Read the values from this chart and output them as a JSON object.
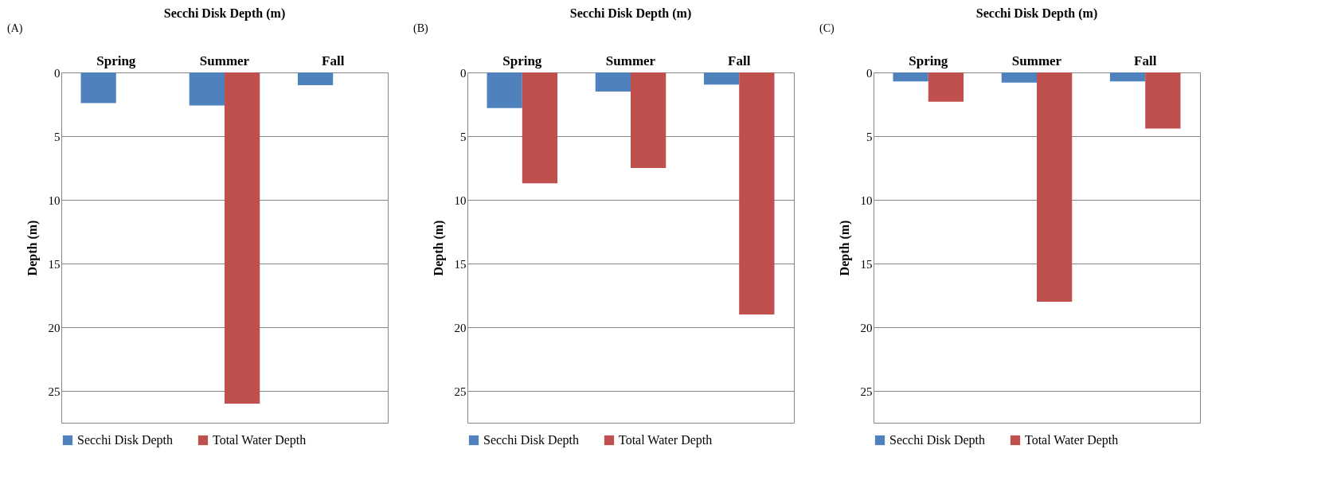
{
  "chart_data": [
    {
      "type": "bar",
      "title": "Secchi Disk Depth (m)",
      "ylabel": "Depth (m)",
      "annotations": [
        "(A)"
      ],
      "categories": [
        "Spring",
        "Summer",
        "Fall"
      ],
      "series": [
        {
          "name": "Secchi Disk Depth",
          "color": "#4f81bd",
          "values": [
            2.4,
            2.6,
            1.0
          ]
        },
        {
          "name": "Total Water Depth",
          "color": "#c0504d",
          "values": [
            null,
            26,
            null
          ]
        }
      ],
      "ylim": [
        27.5,
        0
      ],
      "yticks": [
        0,
        5,
        10,
        15,
        20,
        25
      ],
      "grid": "y",
      "legend": "bottom"
    },
    {
      "type": "bar",
      "title": "Secchi Disk Depth (m)",
      "ylabel": "Depth (m)",
      "annotations": [
        "(B)"
      ],
      "categories": [
        "Spring",
        "Summer",
        "Fall"
      ],
      "series": [
        {
          "name": "Secchi Disk Depth",
          "color": "#4f81bd",
          "values": [
            2.8,
            1.5,
            0.95
          ]
        },
        {
          "name": "Total Water Depth",
          "color": "#c0504d",
          "values": [
            8.7,
            7.5,
            19.0
          ]
        }
      ],
      "ylim": [
        27.5,
        0
      ],
      "yticks": [
        0,
        5,
        10,
        15,
        20,
        25
      ],
      "grid": "y",
      "legend": "bottom"
    },
    {
      "type": "bar",
      "title": "Secchi Disk Depth (m)",
      "ylabel": "Depth (m)",
      "annotations": [
        "(C)"
      ],
      "categories": [
        "Spring",
        "Summer",
        "Fall"
      ],
      "series": [
        {
          "name": "Secchi Disk Depth",
          "color": "#4f81bd",
          "values": [
            0.7,
            0.8,
            0.7
          ]
        },
        {
          "name": "Total Water Depth",
          "color": "#c0504d",
          "values": [
            2.3,
            18.0,
            4.4
          ]
        }
      ],
      "ylim": [
        27.5,
        0
      ],
      "yticks": [
        0,
        5,
        10,
        15,
        20,
        25
      ],
      "grid": "y",
      "legend": "bottom"
    }
  ]
}
